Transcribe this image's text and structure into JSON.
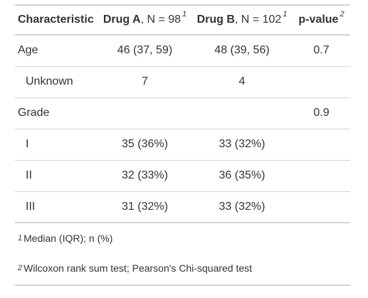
{
  "header": {
    "characteristic": "Characteristic",
    "drug_a_name": "Drug A",
    "drug_a_n": ", N = 98",
    "drug_a_mark": "1",
    "drug_b_name": "Drug B",
    "drug_b_n": ", N = 102",
    "drug_b_mark": "1",
    "pvalue": "p-value",
    "pvalue_mark": "2"
  },
  "rows": [
    {
      "label": "Age",
      "a": "46 (37, 59)",
      "b": "48 (39, 56)",
      "p": "0.7"
    },
    {
      "label": "Unknown",
      "a": "7",
      "b": "4",
      "p": ""
    },
    {
      "label": "Grade",
      "a": "",
      "b": "",
      "p": "0.9"
    },
    {
      "label": "I",
      "a": "35 (36%)",
      "b": "33 (32%)",
      "p": ""
    },
    {
      "label": "II",
      "a": "32 (33%)",
      "b": "36 (35%)",
      "p": ""
    },
    {
      "label": "III",
      "a": "31 (32%)",
      "b": "33 (32%)",
      "p": ""
    }
  ],
  "footnotes": [
    {
      "mark": "1",
      "text": "Median (IQR); n (%)"
    },
    {
      "mark": "2",
      "text": "Wilcoxon rank sum test; Pearson's Chi-squared test"
    }
  ]
}
